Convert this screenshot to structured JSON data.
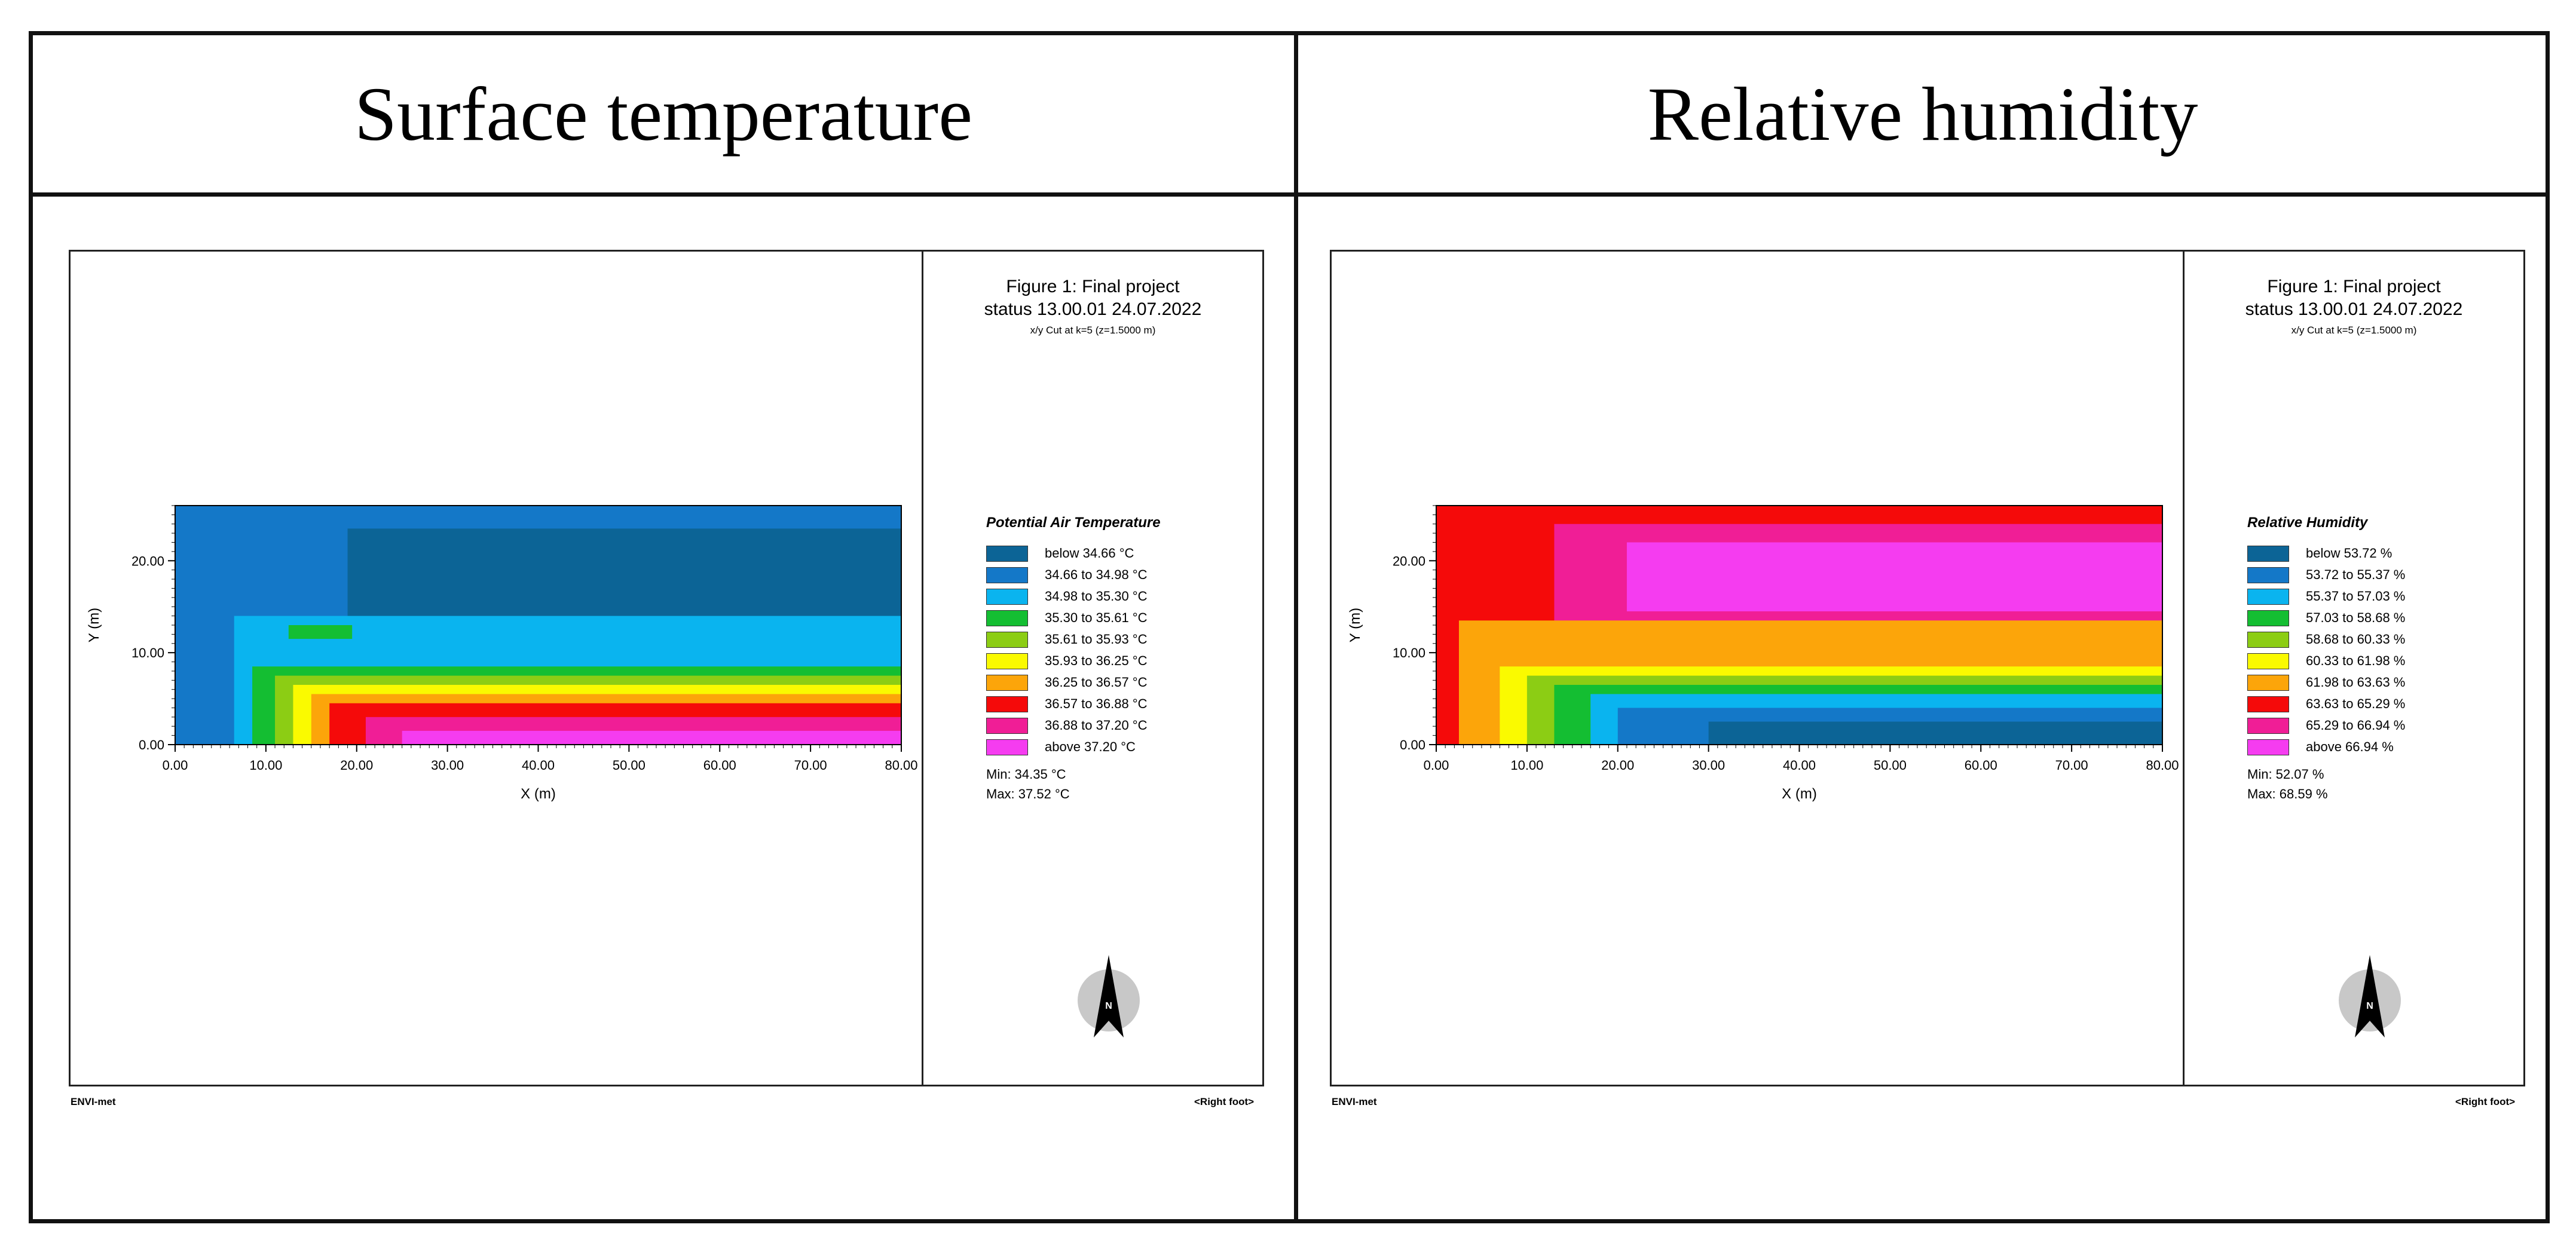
{
  "headers": {
    "left": "Surface temperature",
    "right": "Relative humidity"
  },
  "panels": [
    {
      "figure_title_line1": "Figure 1: Final project",
      "figure_title_line2": "status 13.00.01 24.07.2022",
      "cut_label": "x/y Cut at k=5 (z=1.5000 m)",
      "legend_title": "Potential Air Temperature",
      "legend": [
        {
          "label": "below 34.66 °C",
          "color": "#0c6496"
        },
        {
          "label": "34.66 to 34.98 °C",
          "color": "#1478c8"
        },
        {
          "label": "34.98 to 35.30 °C",
          "color": "#0ab4ef"
        },
        {
          "label": "35.30 to 35.61 °C",
          "color": "#14be32"
        },
        {
          "label": "35.61 to 35.93 °C",
          "color": "#8ccd14"
        },
        {
          "label": "35.93 to 36.25 °C",
          "color": "#fafa00"
        },
        {
          "label": "36.25 to 36.57 °C",
          "color": "#fca50a"
        },
        {
          "label": "36.57 to 36.88 °C",
          "color": "#f50a0a"
        },
        {
          "label": "36.88 to 37.20 °C",
          "color": "#f01e96"
        },
        {
          "label": "above 37.20 °C",
          "color": "#f53cf0"
        }
      ],
      "min_label": "Min: 34.35 °C",
      "max_label": "Max: 37.52 °C",
      "footer_left": "ENVI-met",
      "footer_right": "<Right foot>",
      "compass_letter": "N"
    },
    {
      "figure_title_line1": "Figure 1: Final project",
      "figure_title_line2": "status 13.00.01 24.07.2022",
      "cut_label": "x/y Cut at k=5 (z=1.5000 m)",
      "legend_title": "Relative Humidity",
      "legend": [
        {
          "label": "below 53.72 %",
          "color": "#0c6496"
        },
        {
          "label": "53.72 to 55.37 %",
          "color": "#1478c8"
        },
        {
          "label": "55.37 to 57.03 %",
          "color": "#0ab4ef"
        },
        {
          "label": "57.03 to 58.68 %",
          "color": "#14be32"
        },
        {
          "label": "58.68 to 60.33 %",
          "color": "#8ccd14"
        },
        {
          "label": "60.33 to 61.98 %",
          "color": "#fafa00"
        },
        {
          "label": "61.98 to 63.63 %",
          "color": "#fca50a"
        },
        {
          "label": "63.63 to 65.29 %",
          "color": "#f50a0a"
        },
        {
          "label": "65.29 to 66.94 %",
          "color": "#f01e96"
        },
        {
          "label": "above 66.94 %",
          "color": "#f53cf0"
        }
      ],
      "min_label": "Min: 52.07 %",
      "max_label": "Max: 68.59 %",
      "footer_left": "ENVI-met",
      "footer_right": "<Right foot>",
      "compass_letter": "N"
    }
  ],
  "chart_data": [
    {
      "type": "heatmap",
      "title": "Potential Air Temperature",
      "xlabel": "X (m)",
      "ylabel": "Y (m)",
      "xlim": [
        0,
        80
      ],
      "ylim": [
        0,
        26
      ],
      "xticks": [
        0,
        10,
        20,
        30,
        40,
        50,
        60,
        70,
        80
      ],
      "yticks": [
        0,
        10,
        20
      ],
      "xtick_labels": [
        "0.00",
        "10.00",
        "20.00",
        "30.00",
        "40.00",
        "50.00",
        "60.00",
        "70.00",
        "80.00"
      ],
      "ytick_labels": [
        "0.00",
        "10.00",
        "20.00"
      ],
      "min": 34.35,
      "max": 37.52,
      "unit": "°C",
      "regions": [
        {
          "class": 1,
          "x": [
            0,
            80
          ],
          "y": [
            0,
            26
          ]
        },
        {
          "class": 0,
          "x": [
            19,
            80
          ],
          "y": [
            13.5,
            23.5
          ]
        },
        {
          "class": 2,
          "x": [
            6.5,
            80
          ],
          "y": [
            0,
            14
          ]
        },
        {
          "class": 3,
          "x": [
            8.5,
            80
          ],
          "y": [
            0,
            8.5
          ]
        },
        {
          "class": 4,
          "x": [
            11,
            80
          ],
          "y": [
            0,
            7.5
          ]
        },
        {
          "class": 5,
          "x": [
            13,
            80
          ],
          "y": [
            0,
            6.5
          ]
        },
        {
          "class": 6,
          "x": [
            15,
            80
          ],
          "y": [
            0,
            5.5
          ]
        },
        {
          "class": 7,
          "x": [
            17,
            80
          ],
          "y": [
            0,
            4.5
          ]
        },
        {
          "class": 8,
          "x": [
            21,
            80
          ],
          "y": [
            0,
            3
          ]
        },
        {
          "class": 9,
          "x": [
            25,
            80
          ],
          "y": [
            0,
            1.5
          ]
        },
        {
          "class": 3,
          "x": [
            12.5,
            19.5
          ],
          "y": [
            11.5,
            13
          ]
        }
      ]
    },
    {
      "type": "heatmap",
      "title": "Relative Humidity",
      "xlabel": "X (m)",
      "ylabel": "Y (m)",
      "xlim": [
        0,
        80
      ],
      "ylim": [
        0,
        26
      ],
      "xticks": [
        0,
        10,
        20,
        30,
        40,
        50,
        60,
        70,
        80
      ],
      "yticks": [
        0,
        10,
        20
      ],
      "xtick_labels": [
        "0.00",
        "10.00",
        "20.00",
        "30.00",
        "40.00",
        "50.00",
        "60.00",
        "70.00",
        "80.00"
      ],
      "ytick_labels": [
        "0.00",
        "10.00",
        "20.00"
      ],
      "min": 52.07,
      "max": 68.59,
      "unit": "%",
      "regions": [
        {
          "class": 7,
          "x": [
            0,
            80
          ],
          "y": [
            0,
            26
          ]
        },
        {
          "class": 8,
          "x": [
            13,
            80
          ],
          "y": [
            13,
            24
          ]
        },
        {
          "class": 9,
          "x": [
            21,
            80
          ],
          "y": [
            14.5,
            22
          ]
        },
        {
          "class": 6,
          "x": [
            2.5,
            80
          ],
          "y": [
            0,
            13.5
          ]
        },
        {
          "class": 5,
          "x": [
            7,
            80
          ],
          "y": [
            0,
            8.5
          ]
        },
        {
          "class": 4,
          "x": [
            10,
            80
          ],
          "y": [
            0,
            7.5
          ]
        },
        {
          "class": 3,
          "x": [
            13,
            80
          ],
          "y": [
            0,
            6.5
          ]
        },
        {
          "class": 2,
          "x": [
            17,
            80
          ],
          "y": [
            0,
            5.5
          ]
        },
        {
          "class": 1,
          "x": [
            20,
            80
          ],
          "y": [
            0,
            4
          ]
        },
        {
          "class": 0,
          "x": [
            30,
            80
          ],
          "y": [
            0,
            2.5
          ]
        }
      ]
    }
  ]
}
